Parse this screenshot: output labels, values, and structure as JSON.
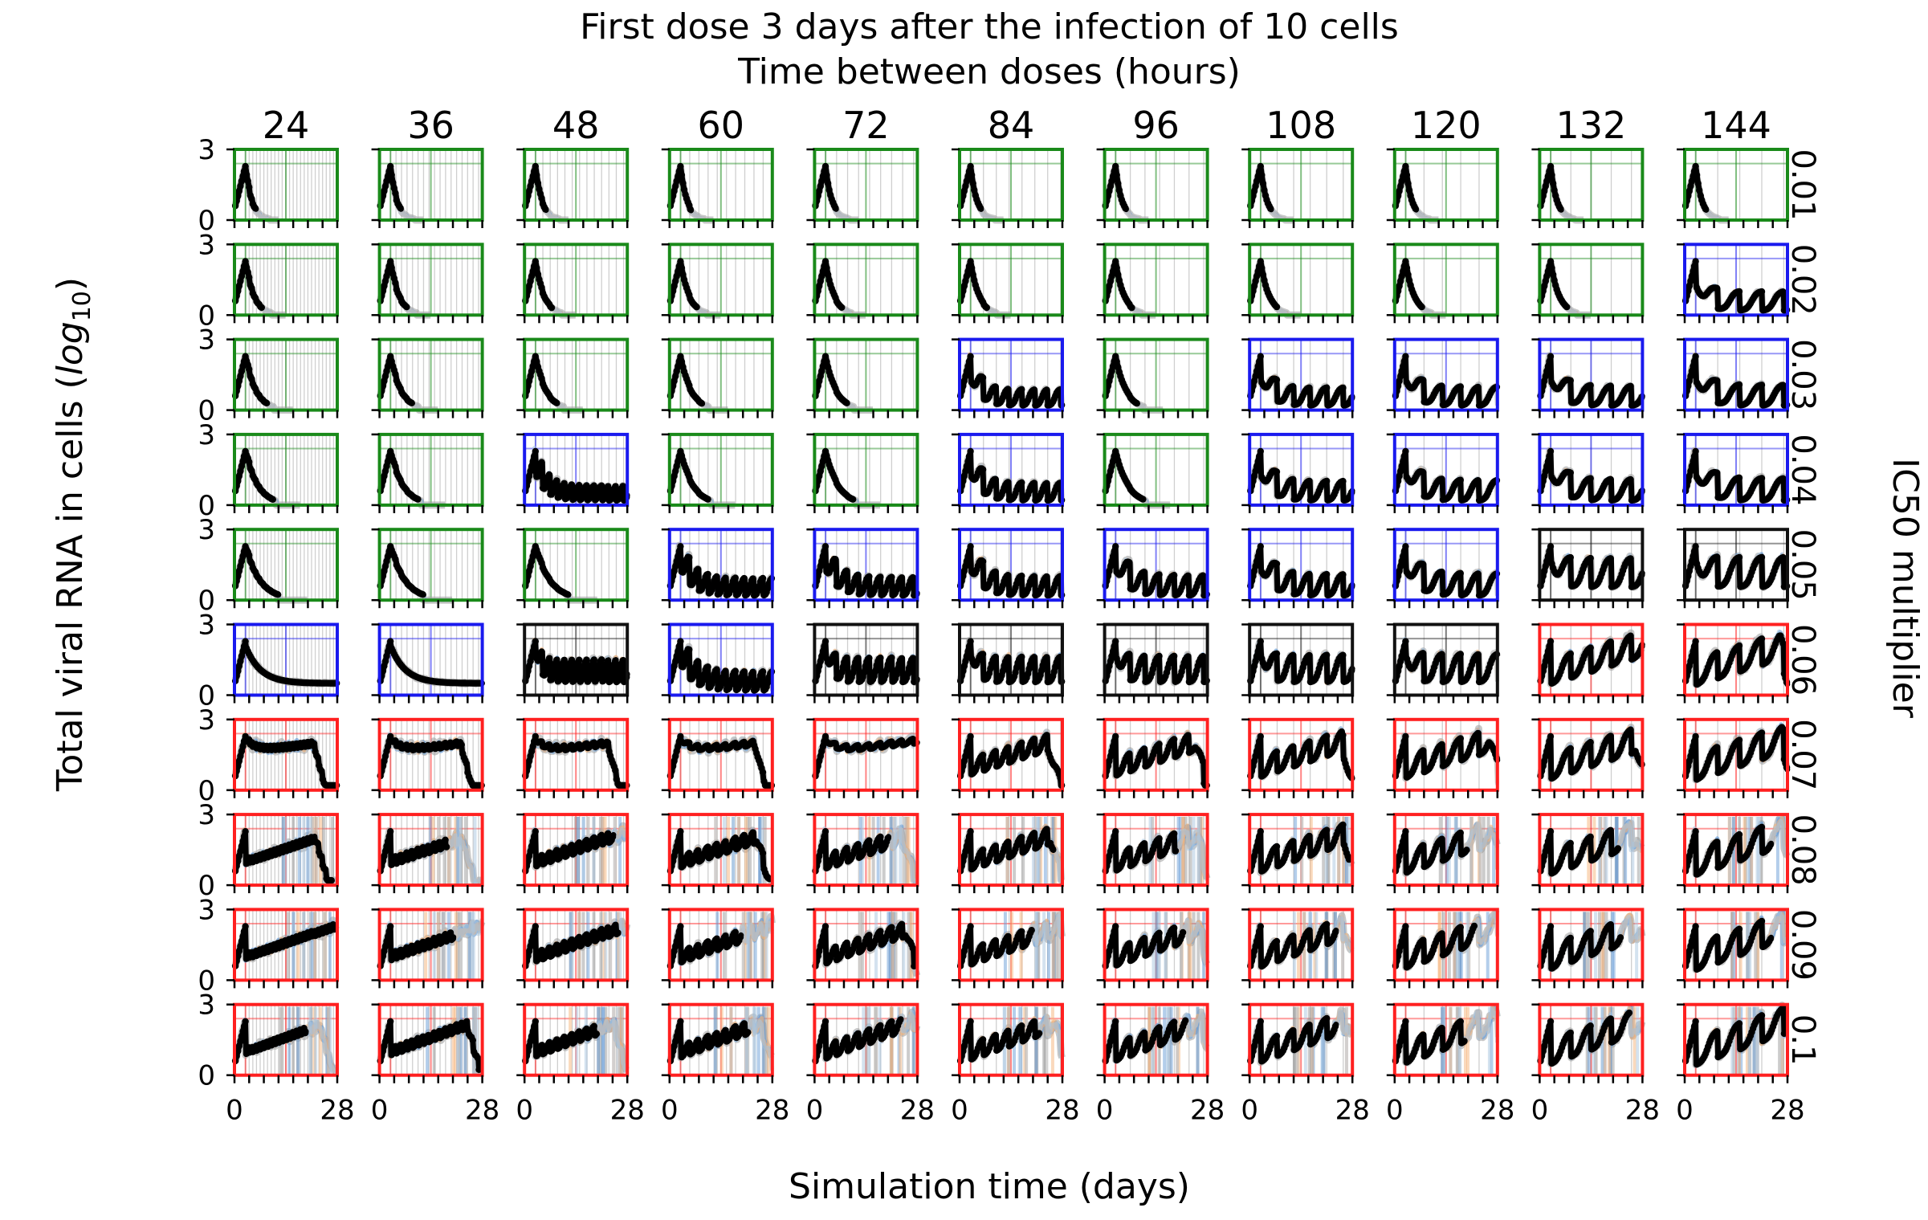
{
  "chart_data": {
    "type": "line",
    "title": "First dose 3 days after the infection of 10 cells",
    "subtitle": "Time between doses (hours)",
    "xlabel": "Simulation time (days)",
    "ylabel_main": "Total viral RNA in cells (",
    "ylabel_log": "log",
    "ylabel_sub": "10",
    "ylabel_close": ")",
    "right_label": "IC50 multiplier",
    "xlim": [
      0,
      28
    ],
    "ylim": [
      0,
      3
    ],
    "x_ticks": [
      "0",
      "28"
    ],
    "y_ticks": [
      "0",
      "3"
    ],
    "dose_interval_hours": [
      "24",
      "36",
      "48",
      "60",
      "72",
      "84",
      "96",
      "108",
      "120",
      "132",
      "144"
    ],
    "ic50_multiplier": [
      "0.01",
      "0.02",
      "0.03",
      "0.04",
      "0.05",
      "0.06",
      "0.07",
      "0.08",
      "0.09",
      "0.1"
    ],
    "outcome_colors": {
      "cleared": "#1a8a1a",
      "suppressed": "#1a1aee",
      "persistent": "#111111",
      "uncontrolled": "#ff2020"
    },
    "outcome_grid": [
      [
        "cleared",
        "cleared",
        "cleared",
        "cleared",
        "cleared",
        "cleared",
        "cleared",
        "cleared",
        "cleared",
        "cleared",
        "cleared"
      ],
      [
        "cleared",
        "cleared",
        "cleared",
        "cleared",
        "cleared",
        "cleared",
        "cleared",
        "cleared",
        "cleared",
        "cleared",
        "suppressed"
      ],
      [
        "cleared",
        "cleared",
        "cleared",
        "cleared",
        "cleared",
        "suppressed",
        "cleared",
        "suppressed",
        "suppressed",
        "suppressed",
        "suppressed"
      ],
      [
        "cleared",
        "cleared",
        "suppressed",
        "cleared",
        "cleared",
        "suppressed",
        "cleared",
        "suppressed",
        "suppressed",
        "suppressed",
        "suppressed"
      ],
      [
        "cleared",
        "cleared",
        "cleared",
        "suppressed",
        "suppressed",
        "suppressed",
        "suppressed",
        "suppressed",
        "suppressed",
        "persistent",
        "persistent"
      ],
      [
        "suppressed",
        "suppressed",
        "persistent",
        "suppressed",
        "persistent",
        "persistent",
        "persistent",
        "persistent",
        "persistent",
        "uncontrolled",
        "uncontrolled"
      ],
      [
        "uncontrolled",
        "uncontrolled",
        "uncontrolled",
        "uncontrolled",
        "uncontrolled",
        "uncontrolled",
        "uncontrolled",
        "uncontrolled",
        "uncontrolled",
        "uncontrolled",
        "uncontrolled"
      ],
      [
        "uncontrolled",
        "uncontrolled",
        "uncontrolled",
        "uncontrolled",
        "uncontrolled",
        "uncontrolled",
        "uncontrolled",
        "uncontrolled",
        "uncontrolled",
        "uncontrolled",
        "uncontrolled"
      ],
      [
        "uncontrolled",
        "uncontrolled",
        "uncontrolled",
        "uncontrolled",
        "uncontrolled",
        "uncontrolled",
        "uncontrolled",
        "uncontrolled",
        "uncontrolled",
        "uncontrolled",
        "uncontrolled"
      ],
      [
        "uncontrolled",
        "uncontrolled",
        "uncontrolled",
        "uncontrolled",
        "uncontrolled",
        "uncontrolled",
        "uncontrolled",
        "uncontrolled",
        "uncontrolled",
        "uncontrolled",
        "uncontrolled"
      ]
    ],
    "series_colors": {
      "mean": "#000000",
      "replicate_a": "#6a9ed8",
      "replicate_b": "#f5b47a",
      "replicate_c": "#a9c6e0",
      "replicate_d": "#9a9a9a"
    },
    "first_dose_day": 3,
    "peak_log10_uncontrolled": 3.0
  }
}
